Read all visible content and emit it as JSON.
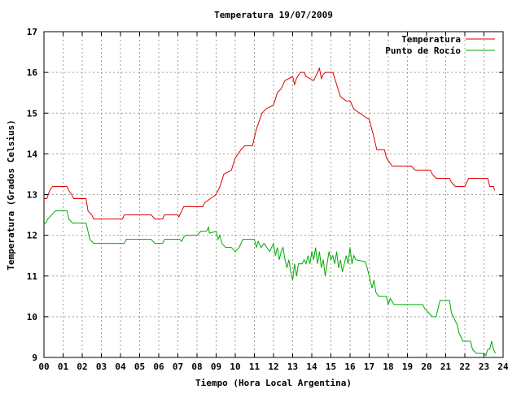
{
  "chart_data": {
    "type": "line",
    "title": "Temperatura 19/07/2009",
    "xlabel": "Tiempo (Hora Local Argentina)",
    "ylabel": "Temperatura (Grados Celsius)",
    "xlim": [
      0,
      24
    ],
    "ylim": [
      9,
      17
    ],
    "x_ticks": [
      "00",
      "01",
      "02",
      "03",
      "04",
      "05",
      "06",
      "07",
      "08",
      "09",
      "10",
      "11",
      "12",
      "13",
      "14",
      "15",
      "16",
      "17",
      "18",
      "19",
      "20",
      "21",
      "22",
      "23",
      "24"
    ],
    "y_ticks": [
      "9",
      "10",
      "11",
      "12",
      "13",
      "14",
      "15",
      "16",
      "17"
    ],
    "grid": true,
    "legend_position": "top-right",
    "series": [
      {
        "name": "Temperatura",
        "color": "#dd0000",
        "points": [
          [
            0.0,
            12.9
          ],
          [
            0.15,
            12.9
          ],
          [
            0.3,
            13.1
          ],
          [
            0.45,
            13.2
          ],
          [
            1.2,
            13.2
          ],
          [
            1.3,
            13.1
          ],
          [
            1.45,
            13.0
          ],
          [
            1.55,
            12.9
          ],
          [
            2.2,
            12.9
          ],
          [
            2.3,
            12.6
          ],
          [
            2.5,
            12.5
          ],
          [
            2.6,
            12.4
          ],
          [
            4.1,
            12.4
          ],
          [
            4.2,
            12.5
          ],
          [
            5.6,
            12.5
          ],
          [
            5.8,
            12.4
          ],
          [
            6.2,
            12.4
          ],
          [
            6.3,
            12.5
          ],
          [
            7.0,
            12.5
          ],
          [
            7.05,
            12.45
          ],
          [
            7.15,
            12.55
          ],
          [
            7.3,
            12.7
          ],
          [
            8.3,
            12.7
          ],
          [
            8.4,
            12.8
          ],
          [
            8.7,
            12.9
          ],
          [
            9.0,
            13.0
          ],
          [
            9.2,
            13.2
          ],
          [
            9.4,
            13.5
          ],
          [
            9.8,
            13.6
          ],
          [
            10.0,
            13.9
          ],
          [
            10.3,
            14.1
          ],
          [
            10.5,
            14.2
          ],
          [
            10.9,
            14.2
          ],
          [
            11.1,
            14.6
          ],
          [
            11.4,
            15.0
          ],
          [
            11.6,
            15.1
          ],
          [
            12.0,
            15.2
          ],
          [
            12.2,
            15.5
          ],
          [
            12.4,
            15.6
          ],
          [
            12.5,
            15.7
          ],
          [
            12.6,
            15.8
          ],
          [
            13.0,
            15.9
          ],
          [
            13.1,
            15.7
          ],
          [
            13.2,
            15.85
          ],
          [
            13.4,
            16.0
          ],
          [
            13.6,
            16.0
          ],
          [
            13.7,
            15.9
          ],
          [
            14.1,
            15.8
          ],
          [
            14.3,
            16.0
          ],
          [
            14.4,
            16.1
          ],
          [
            14.5,
            15.85
          ],
          [
            14.6,
            15.95
          ],
          [
            14.7,
            16.0
          ],
          [
            15.1,
            16.0
          ],
          [
            15.3,
            15.7
          ],
          [
            15.5,
            15.4
          ],
          [
            15.8,
            15.3
          ],
          [
            16.0,
            15.3
          ],
          [
            16.2,
            15.1
          ],
          [
            16.5,
            15.0
          ],
          [
            16.8,
            14.9
          ],
          [
            17.0,
            14.85
          ],
          [
            17.2,
            14.5
          ],
          [
            17.4,
            14.1
          ],
          [
            17.8,
            14.1
          ],
          [
            17.9,
            13.9
          ],
          [
            18.2,
            13.7
          ],
          [
            19.2,
            13.7
          ],
          [
            19.4,
            13.6
          ],
          [
            20.2,
            13.6
          ],
          [
            20.3,
            13.5
          ],
          [
            20.5,
            13.4
          ],
          [
            21.2,
            13.4
          ],
          [
            21.3,
            13.3
          ],
          [
            21.5,
            13.2
          ],
          [
            22.0,
            13.2
          ],
          [
            22.1,
            13.3
          ],
          [
            22.2,
            13.4
          ],
          [
            23.2,
            13.4
          ],
          [
            23.3,
            13.2
          ],
          [
            23.5,
            13.2
          ],
          [
            23.55,
            13.1
          ]
        ]
      },
      {
        "name": "Punto de Rocío",
        "color": "#00aa00",
        "points": [
          [
            0.0,
            12.3
          ],
          [
            0.1,
            12.3
          ],
          [
            0.2,
            12.4
          ],
          [
            0.4,
            12.5
          ],
          [
            0.6,
            12.6
          ],
          [
            1.2,
            12.6
          ],
          [
            1.3,
            12.4
          ],
          [
            1.5,
            12.3
          ],
          [
            2.2,
            12.3
          ],
          [
            2.3,
            12.1
          ],
          [
            2.4,
            11.9
          ],
          [
            2.6,
            11.8
          ],
          [
            4.2,
            11.8
          ],
          [
            4.3,
            11.9
          ],
          [
            5.6,
            11.9
          ],
          [
            5.8,
            11.8
          ],
          [
            6.2,
            11.8
          ],
          [
            6.3,
            11.9
          ],
          [
            7.1,
            11.9
          ],
          [
            7.2,
            11.85
          ],
          [
            7.3,
            11.95
          ],
          [
            7.4,
            12.0
          ],
          [
            8.0,
            12.0
          ],
          [
            8.2,
            12.1
          ],
          [
            8.5,
            12.1
          ],
          [
            8.6,
            12.2
          ],
          [
            8.65,
            12.05
          ],
          [
            9.0,
            12.1
          ],
          [
            9.1,
            11.9
          ],
          [
            9.2,
            12.0
          ],
          [
            9.3,
            11.8
          ],
          [
            9.5,
            11.7
          ],
          [
            9.8,
            11.7
          ],
          [
            10.0,
            11.6
          ],
          [
            10.2,
            11.7
          ],
          [
            10.4,
            11.9
          ],
          [
            11.0,
            11.9
          ],
          [
            11.1,
            11.7
          ],
          [
            11.2,
            11.85
          ],
          [
            11.35,
            11.7
          ],
          [
            11.5,
            11.8
          ],
          [
            11.8,
            11.6
          ],
          [
            12.0,
            11.8
          ],
          [
            12.1,
            11.5
          ],
          [
            12.2,
            11.7
          ],
          [
            12.3,
            11.4
          ],
          [
            12.4,
            11.6
          ],
          [
            12.5,
            11.7
          ],
          [
            12.6,
            11.4
          ],
          [
            12.7,
            11.2
          ],
          [
            12.8,
            11.4
          ],
          [
            12.9,
            11.1
          ],
          [
            13.0,
            10.9
          ],
          [
            13.1,
            11.3
          ],
          [
            13.2,
            11.0
          ],
          [
            13.3,
            11.3
          ],
          [
            13.5,
            11.3
          ],
          [
            13.6,
            11.4
          ],
          [
            13.7,
            11.3
          ],
          [
            13.8,
            11.5
          ],
          [
            13.9,
            11.3
          ],
          [
            14.0,
            11.6
          ],
          [
            14.1,
            11.4
          ],
          [
            14.2,
            11.7
          ],
          [
            14.3,
            11.3
          ],
          [
            14.4,
            11.6
          ],
          [
            14.5,
            11.2
          ],
          [
            14.6,
            11.4
          ],
          [
            14.7,
            11.0
          ],
          [
            14.8,
            11.3
          ],
          [
            14.9,
            11.6
          ],
          [
            15.0,
            11.4
          ],
          [
            15.1,
            11.5
          ],
          [
            15.2,
            11.3
          ],
          [
            15.3,
            11.6
          ],
          [
            15.4,
            11.2
          ],
          [
            15.5,
            11.4
          ],
          [
            15.6,
            11.1
          ],
          [
            15.7,
            11.3
          ],
          [
            15.8,
            11.5
          ],
          [
            15.9,
            11.3
          ],
          [
            16.0,
            11.7
          ],
          [
            16.1,
            11.3
          ],
          [
            16.2,
            11.5
          ],
          [
            16.3,
            11.4
          ],
          [
            16.8,
            11.35
          ],
          [
            16.9,
            11.2
          ],
          [
            17.05,
            10.9
          ],
          [
            17.15,
            10.7
          ],
          [
            17.25,
            10.9
          ],
          [
            17.35,
            10.6
          ],
          [
            17.5,
            10.5
          ],
          [
            17.9,
            10.5
          ],
          [
            18.0,
            10.3
          ],
          [
            18.1,
            10.45
          ],
          [
            18.3,
            10.3
          ],
          [
            19.8,
            10.3
          ],
          [
            19.9,
            10.2
          ],
          [
            20.1,
            10.1
          ],
          [
            20.3,
            10.0
          ],
          [
            20.5,
            10.0
          ],
          [
            20.6,
            10.2
          ],
          [
            20.7,
            10.4
          ],
          [
            21.2,
            10.4
          ],
          [
            21.3,
            10.1
          ],
          [
            21.5,
            9.9
          ],
          [
            21.6,
            9.8
          ],
          [
            21.7,
            9.6
          ],
          [
            21.9,
            9.4
          ],
          [
            22.3,
            9.4
          ],
          [
            22.4,
            9.2
          ],
          [
            22.6,
            9.1
          ],
          [
            23.0,
            9.1
          ],
          [
            23.1,
            9.05
          ],
          [
            23.2,
            9.2
          ],
          [
            23.3,
            9.2
          ],
          [
            23.4,
            9.4
          ],
          [
            23.5,
            9.2
          ],
          [
            23.6,
            9.1
          ]
        ]
      }
    ]
  }
}
